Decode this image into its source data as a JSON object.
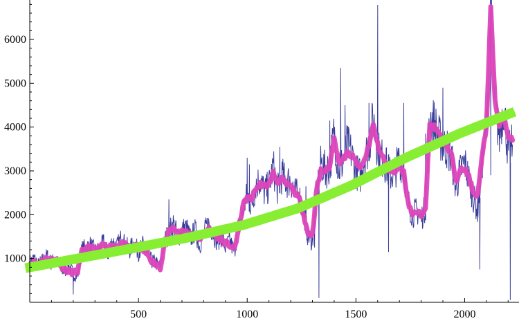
{
  "chart_data": {
    "type": "line",
    "title": "",
    "xlabel": "",
    "ylabel": "",
    "xlim": [
      0,
      2250
    ],
    "ylim": [
      0,
      6900
    ],
    "grid": false,
    "x_ticks": [
      500,
      1000,
      1500,
      2000
    ],
    "x_tick_labels": [
      "500",
      "1000",
      "1500",
      "2000"
    ],
    "y_ticks": [
      1000,
      2000,
      3000,
      4000,
      5000,
      6000
    ],
    "y_tick_labels": [
      "1000",
      "2000",
      "3000",
      "4000",
      "5000",
      "6000"
    ],
    "colors": {
      "raw": "#3a3d9a",
      "smoothed": "#dd44bb",
      "trend": "#88ee33"
    },
    "series": [
      {
        "role": "raw",
        "note_drawing": "noisy raw series",
        "x": [
          0,
          20,
          40,
          60,
          80,
          100,
          120,
          140,
          160,
          180,
          200,
          220,
          240,
          260,
          280,
          300,
          320,
          340,
          360,
          380,
          400,
          420,
          440,
          460,
          480,
          500,
          520,
          540,
          560,
          580,
          600,
          620,
          640,
          660,
          680,
          700,
          720,
          740,
          760,
          780,
          800,
          820,
          840,
          860,
          880,
          900,
          920,
          940,
          960,
          980,
          1000,
          1020,
          1040,
          1060,
          1080,
          1100,
          1120,
          1140,
          1160,
          1180,
          1200,
          1220,
          1240,
          1260,
          1280,
          1300,
          1320,
          1340,
          1360,
          1380,
          1400,
          1420,
          1440,
          1460,
          1480,
          1500,
          1520,
          1540,
          1560,
          1580,
          1600,
          1620,
          1640,
          1660,
          1680,
          1700,
          1720,
          1740,
          1760,
          1780,
          1800,
          1820,
          1840,
          1860,
          1880,
          1900,
          1920,
          1940,
          1960,
          1980,
          2000,
          2020,
          2040,
          2060,
          2080,
          2100,
          2120,
          2140,
          2160,
          2180,
          2200,
          2220
        ],
        "y": [
          900,
          1000,
          850,
          950,
          1050,
          900,
          1000,
          750,
          700,
          850,
          650,
          600,
          1200,
          1250,
          1300,
          1150,
          1200,
          1350,
          1100,
          1400,
          1250,
          1450,
          1300,
          1200,
          1350,
          1150,
          1300,
          1050,
          950,
          900,
          800,
          1400,
          1600,
          1800,
          1500,
          1650,
          1700,
          1450,
          1650,
          1300,
          1550,
          1800,
          1650,
          1400,
          1500,
          1250,
          1400,
          1150,
          1700,
          2100,
          2450,
          2200,
          2700,
          2800,
          2500,
          2650,
          3100,
          2550,
          2900,
          2750,
          2800,
          2500,
          2400,
          2050,
          1500,
          1400,
          2500,
          3200,
          3000,
          3100,
          3900,
          3000,
          3200,
          3600,
          3400,
          3000,
          2900,
          3300,
          3600,
          4200,
          3500,
          3300,
          3100,
          2900,
          3000,
          3300,
          3000,
          2300,
          2000,
          2100,
          1900,
          2200,
          4200,
          4100,
          3800,
          3600,
          3500,
          3300,
          2600,
          3000,
          3200,
          2800,
          2400,
          2100,
          3200,
          3900,
          6800,
          4400,
          3800,
          4500,
          3400,
          3600
        ],
        "spikes": [
          {
            "x": 200,
            "y": 180
          },
          {
            "x": 640,
            "y": 2350
          },
          {
            "x": 1000,
            "y": 3300
          },
          {
            "x": 1010,
            "y": 3150
          },
          {
            "x": 1150,
            "y": 3550
          },
          {
            "x": 1270,
            "y": 2650
          },
          {
            "x": 1310,
            "y": 1250
          },
          {
            "x": 1330,
            "y": 100
          },
          {
            "x": 1380,
            "y": 4150
          },
          {
            "x": 1430,
            "y": 5350
          },
          {
            "x": 1450,
            "y": 4500
          },
          {
            "x": 1560,
            "y": 4550
          },
          {
            "x": 1600,
            "y": 6790
          },
          {
            "x": 1640,
            "y": 3000
          },
          {
            "x": 1650,
            "y": 1150
          },
          {
            "x": 1720,
            "y": 4550
          },
          {
            "x": 1820,
            "y": 3850
          },
          {
            "x": 1900,
            "y": 4900
          },
          {
            "x": 2070,
            "y": 750
          },
          {
            "x": 2120,
            "y": 2900
          },
          {
            "x": 2210,
            "y": 50
          }
        ]
      },
      {
        "role": "smoothed",
        "x": [
          0,
          20,
          40,
          60,
          80,
          100,
          120,
          140,
          160,
          180,
          200,
          220,
          240,
          260,
          280,
          300,
          320,
          340,
          360,
          380,
          400,
          420,
          440,
          460,
          480,
          500,
          520,
          540,
          560,
          580,
          600,
          620,
          640,
          660,
          680,
          700,
          720,
          740,
          760,
          780,
          800,
          820,
          840,
          860,
          880,
          900,
          920,
          940,
          960,
          980,
          1000,
          1020,
          1040,
          1060,
          1080,
          1100,
          1120,
          1140,
          1160,
          1180,
          1200,
          1220,
          1240,
          1260,
          1280,
          1300,
          1320,
          1340,
          1360,
          1380,
          1400,
          1420,
          1440,
          1460,
          1480,
          1500,
          1520,
          1540,
          1560,
          1580,
          1600,
          1620,
          1640,
          1660,
          1680,
          1700,
          1720,
          1740,
          1760,
          1780,
          1800,
          1820,
          1840,
          1860,
          1880,
          1900,
          1920,
          1940,
          1960,
          1980,
          2000,
          2020,
          2040,
          2060,
          2080,
          2100,
          2120,
          2140,
          2160,
          2180,
          2200,
          2220
        ],
        "y": [
          900,
          920,
          880,
          960,
          1000,
          980,
          1000,
          850,
          750,
          700,
          680,
          700,
          1150,
          1250,
          1250,
          1200,
          1250,
          1300,
          1250,
          1300,
          1300,
          1350,
          1300,
          1250,
          1300,
          1250,
          1200,
          1100,
          950,
          850,
          800,
          1350,
          1600,
          1700,
          1600,
          1650,
          1600,
          1550,
          1550,
          1450,
          1550,
          1700,
          1550,
          1500,
          1450,
          1350,
          1300,
          1200,
          1650,
          2200,
          2400,
          2350,
          2600,
          2700,
          2650,
          2700,
          2950,
          2750,
          2800,
          2700,
          2650,
          2500,
          2350,
          2000,
          1550,
          1550,
          2600,
          3000,
          3000,
          3100,
          3800,
          3200,
          3250,
          3400,
          3350,
          3200,
          3050,
          3250,
          3600,
          4050,
          3600,
          3350,
          3150,
          3000,
          3000,
          3150,
          2950,
          2300,
          2000,
          2050,
          2000,
          2200,
          4050,
          4000,
          3850,
          3700,
          3550,
          3350,
          2750,
          3000,
          3050,
          2850,
          2500,
          2450,
          3300,
          4000,
          6700,
          4600,
          4000,
          4300,
          3800,
          3700
        ]
      },
      {
        "role": "trend",
        "x": [
          0,
          250,
          500,
          750,
          1000,
          1250,
          1500,
          1750,
          2000,
          2250
        ],
        "y": [
          780,
          1010,
          1240,
          1480,
          1760,
          2140,
          2670,
          3300,
          3860,
          4350
        ]
      }
    ]
  }
}
